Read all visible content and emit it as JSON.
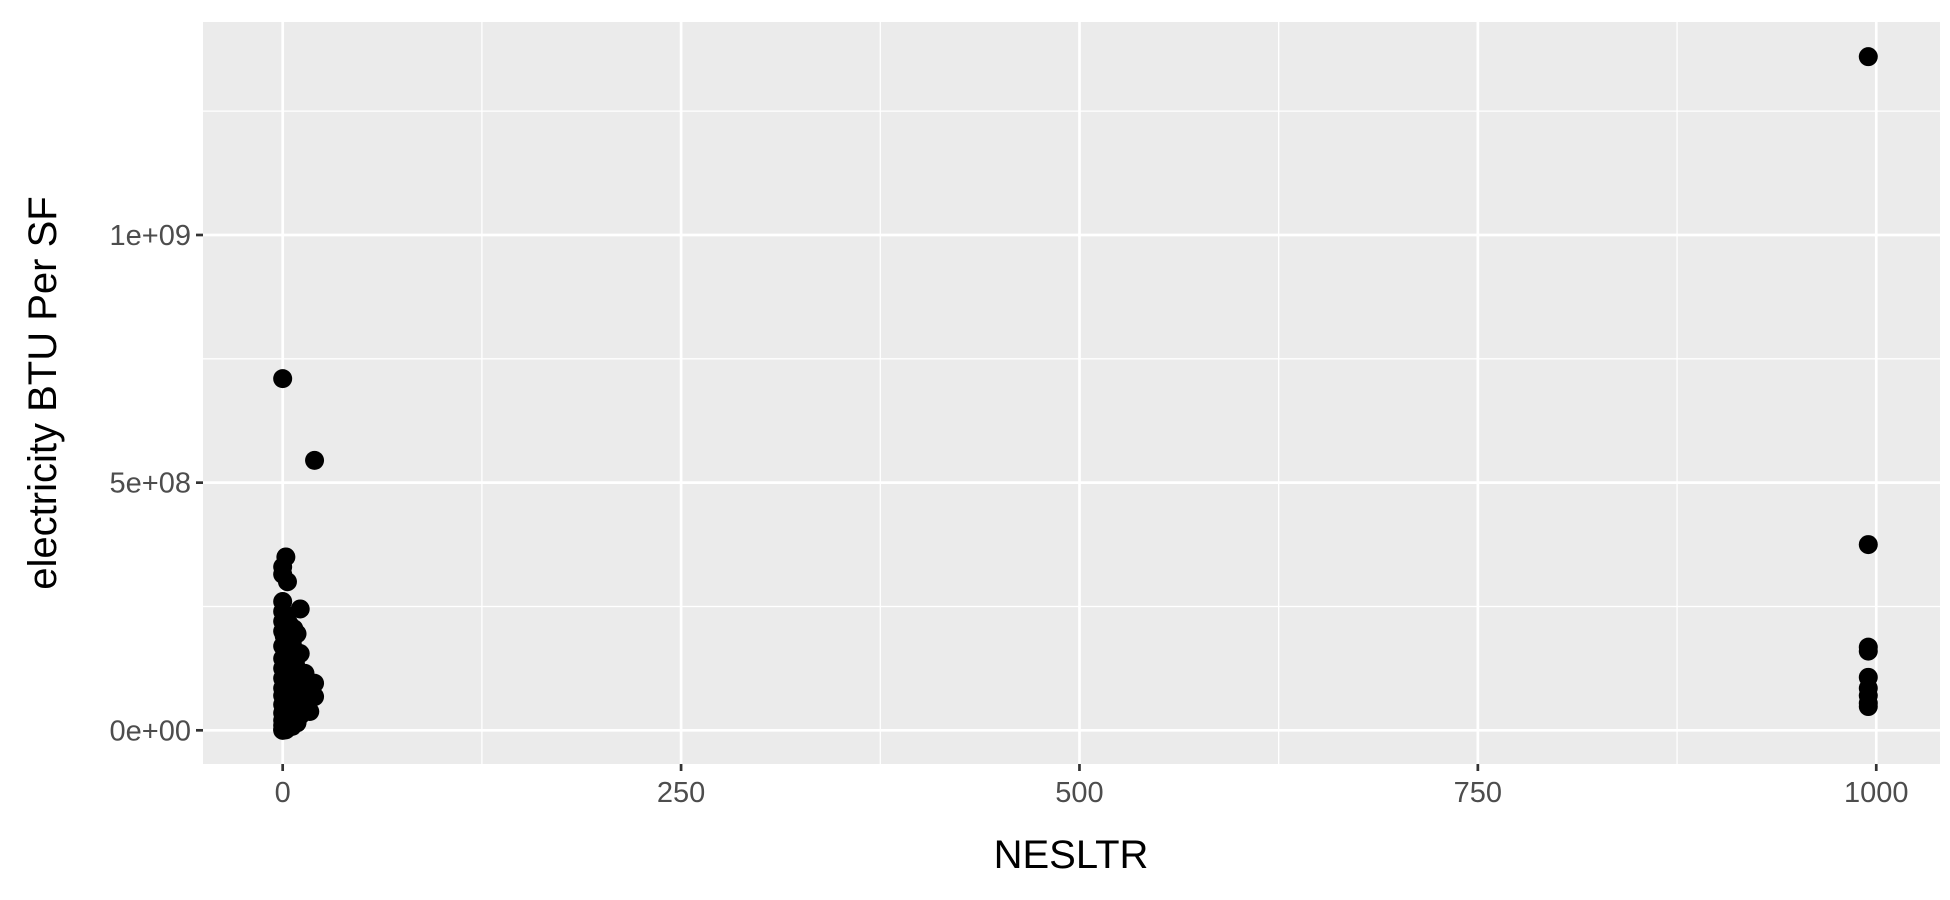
{
  "chart_data": {
    "type": "scatter",
    "title": "",
    "xlabel": "NESLTR",
    "ylabel": "electricity BTU Per SF",
    "xlim": [
      -50,
      1040
    ],
    "ylim": [
      -68000000,
      1430000000
    ],
    "x_major_ticks": [
      0,
      250,
      500,
      750,
      1000
    ],
    "x_tick_labels": [
      "0",
      "250",
      "500",
      "750",
      "1000"
    ],
    "x_minor_ticks": [
      125,
      375,
      625,
      875
    ],
    "y_major_ticks": [
      0,
      500000000,
      1000000000
    ],
    "y_tick_labels": [
      "0e+00",
      "5e+08",
      "1e+09"
    ],
    "y_minor_ticks": [
      250000000,
      750000000,
      1250000000
    ],
    "grid": true,
    "panel_background": "#ebebeb",
    "grid_color": "#ffffff",
    "point_color": "#000000",
    "series": [
      {
        "points": [
          [
            0,
            710000000
          ],
          [
            20,
            545000000
          ],
          [
            2,
            350000000
          ],
          [
            0,
            330000000
          ],
          [
            0,
            315000000
          ],
          [
            3,
            300000000
          ],
          [
            0,
            260000000
          ],
          [
            11,
            245000000
          ],
          [
            0,
            240000000
          ],
          [
            2,
            230000000
          ],
          [
            0,
            220000000
          ],
          [
            4,
            215000000
          ],
          [
            7,
            205000000
          ],
          [
            9,
            195000000
          ],
          [
            0,
            200000000
          ],
          [
            1,
            190000000
          ],
          [
            3,
            180000000
          ],
          [
            6,
            175000000
          ],
          [
            0,
            170000000
          ],
          [
            2,
            160000000
          ],
          [
            11,
            155000000
          ],
          [
            5,
            150000000
          ],
          [
            0,
            145000000
          ],
          [
            1,
            140000000
          ],
          [
            8,
            135000000
          ],
          [
            4,
            130000000
          ],
          [
            0,
            125000000
          ],
          [
            2,
            120000000
          ],
          [
            14,
            115000000
          ],
          [
            6,
            110000000
          ],
          [
            0,
            105000000
          ],
          [
            3,
            100000000
          ],
          [
            9,
            98000000
          ],
          [
            20,
            95000000
          ],
          [
            1,
            92000000
          ],
          [
            5,
            90000000
          ],
          [
            12,
            88000000
          ],
          [
            0,
            85000000
          ],
          [
            7,
            82000000
          ],
          [
            16,
            80000000
          ],
          [
            2,
            78000000
          ],
          [
            4,
            75000000
          ],
          [
            10,
            72000000
          ],
          [
            0,
            70000000
          ],
          [
            20,
            68000000
          ],
          [
            6,
            65000000
          ],
          [
            13,
            62000000
          ],
          [
            1,
            60000000
          ],
          [
            3,
            58000000
          ],
          [
            8,
            55000000
          ],
          [
            0,
            52000000
          ],
          [
            15,
            50000000
          ],
          [
            5,
            48000000
          ],
          [
            9,
            45000000
          ],
          [
            2,
            42000000
          ],
          [
            17,
            38000000
          ],
          [
            0,
            35000000
          ],
          [
            4,
            32000000
          ],
          [
            11,
            30000000
          ],
          [
            1,
            28000000
          ],
          [
            7,
            25000000
          ],
          [
            3,
            22000000
          ],
          [
            0,
            20000000
          ],
          [
            5,
            18000000
          ],
          [
            9,
            15000000
          ],
          [
            2,
            12000000
          ],
          [
            0,
            10000000
          ],
          [
            6,
            8000000
          ],
          [
            1,
            6000000
          ],
          [
            3,
            4000000
          ],
          [
            0,
            2000000
          ],
          [
            2,
            1000000
          ],
          [
            0,
            0
          ],
          [
            995,
            1360000000
          ],
          [
            995,
            375000000
          ],
          [
            995,
            168000000
          ],
          [
            995,
            160000000
          ],
          [
            995,
            107000000
          ],
          [
            995,
            85000000
          ],
          [
            995,
            70000000
          ],
          [
            995,
            55000000
          ],
          [
            995,
            48000000
          ]
        ]
      }
    ]
  }
}
